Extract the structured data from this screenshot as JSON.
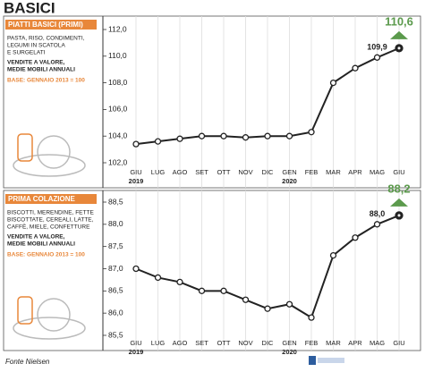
{
  "title": "BASICI",
  "source": "Fonte Nielsen",
  "chart_data": [
    {
      "type": "line",
      "panel_title": "PIATTI BASICI (PRIMI)",
      "description": [
        "PASTA, RISO, CONDIMENTI,",
        "LEGUMI IN SCATOLA",
        "E SURGELATI"
      ],
      "measure": [
        "VENDITE A VALORE,",
        "MEDIE MOBILI ANNUALI"
      ],
      "base": "BASE: GENNAIO 2013 = 100",
      "categories": [
        "GIU",
        "LUG",
        "AGO",
        "SET",
        "OTT",
        "NOV",
        "DIC",
        "GEN",
        "FEB",
        "MAR",
        "APR",
        "MAG",
        "GIU"
      ],
      "years": [
        "2019",
        null,
        null,
        null,
        null,
        null,
        null,
        "2020",
        null,
        null,
        null,
        null,
        null
      ],
      "values": [
        103.4,
        103.6,
        103.8,
        104.0,
        104.0,
        103.9,
        104.0,
        104.0,
        104.3,
        108.0,
        109.1,
        109.9,
        110.6
      ],
      "value_labels": [
        null,
        null,
        null,
        null,
        null,
        null,
        null,
        null,
        null,
        null,
        null,
        "109,9",
        "110,6"
      ],
      "color": "#222222",
      "highlight_color": "#5b9a4c",
      "accent_color": "#e8873a",
      "ylim": [
        102,
        112
      ],
      "yticks": [
        {
          "value": 102,
          "label": "102,0"
        },
        {
          "value": 104,
          "label": "104,0"
        },
        {
          "value": 106,
          "label": "106,0"
        },
        {
          "value": 108,
          "label": "108,0"
        },
        {
          "value": 110,
          "label": "110,0"
        },
        {
          "value": 112,
          "label": "112,0"
        }
      ],
      "grid": true
    },
    {
      "type": "line",
      "panel_title": "PRIMA COLAZIONE",
      "description": [
        "BISCOTTI, MERENDINE, FETTE",
        "BISCOTTATE, CEREALI, LATTE,",
        "CAFFÈ, MIELE, CONFETTURE"
      ],
      "measure": [
        "VENDITE A VALORE,",
        "MEDIE MOBILI ANNUALI"
      ],
      "base": "BASE: GENNAIO 2013 = 100",
      "categories": [
        "GIU",
        "LUG",
        "AGO",
        "SET",
        "OTT",
        "NOV",
        "DIC",
        "GEN",
        "FEB",
        "MAR",
        "APR",
        "MAG",
        "GIU"
      ],
      "years": [
        "2019",
        null,
        null,
        null,
        null,
        null,
        null,
        "2020",
        null,
        null,
        null,
        null,
        null
      ],
      "values": [
        87.0,
        86.8,
        86.7,
        86.5,
        86.5,
        86.3,
        86.1,
        86.2,
        85.9,
        87.3,
        87.7,
        88.0,
        88.2
      ],
      "value_labels": [
        null,
        null,
        null,
        null,
        null,
        null,
        null,
        null,
        null,
        null,
        null,
        "88,0",
        "88,2"
      ],
      "color": "#222222",
      "highlight_color": "#5b9a4c",
      "accent_color": "#e8873a",
      "ylim": [
        85.5,
        88.5
      ],
      "yticks": [
        {
          "value": 85.5,
          "label": "85,5"
        },
        {
          "value": 86,
          "label": "86,0"
        },
        {
          "value": 86.5,
          "label": "86,5"
        },
        {
          "value": 87,
          "label": "87,0"
        },
        {
          "value": 87.5,
          "label": "87,5"
        },
        {
          "value": 88,
          "label": "88,0"
        },
        {
          "value": 88.5,
          "label": "88,5"
        }
      ],
      "grid": true
    }
  ]
}
